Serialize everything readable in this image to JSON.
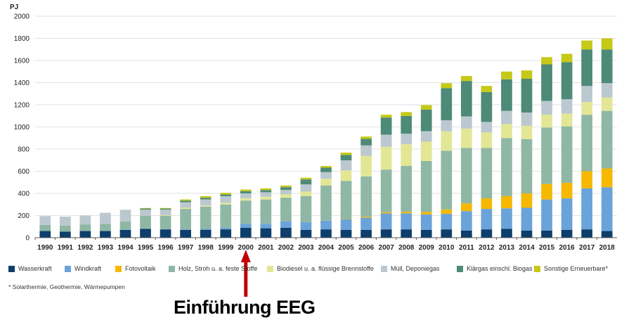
{
  "chart_data": {
    "type": "bar",
    "stacked": true,
    "ylabel": "PJ",
    "ylim": [
      0,
      2000
    ],
    "yticks": [
      0,
      200,
      400,
      600,
      800,
      1000,
      1200,
      1400,
      1600,
      1800,
      2000
    ],
    "grid": true,
    "legend_position": "bottom",
    "categories": [
      "1990",
      "1991",
      "1992",
      "1993",
      "1994",
      "1995",
      "1996",
      "1997",
      "1998",
      "1999",
      "2000",
      "2001",
      "2002",
      "2003",
      "2004",
      "2005",
      "2006",
      "2007",
      "2008",
      "2009",
      "2010",
      "2011",
      "2012",
      "2013",
      "2014",
      "2015",
      "2016",
      "2017",
      "2018"
    ],
    "series": [
      {
        "name": "Wasserkraft",
        "color": "#0e3e6b",
        "values": [
          60,
          55,
          60,
          60,
          70,
          80,
          75,
          70,
          70,
          75,
          90,
          85,
          90,
          70,
          75,
          70,
          70,
          75,
          75,
          70,
          75,
          65,
          75,
          80,
          65,
          65,
          70,
          75,
          60
        ]
      },
      {
        "name": "Windkraft",
        "color": "#6aa3d9",
        "values": [
          0,
          0,
          0,
          0,
          2,
          3,
          3,
          5,
          10,
          15,
          35,
          40,
          60,
          70,
          80,
          95,
          110,
          145,
          145,
          140,
          140,
          175,
          185,
          185,
          205,
          280,
          285,
          370,
          395
        ]
      },
      {
        "name": "Fotovoltaik",
        "color": "#f6b800",
        "values": [
          0,
          0,
          0,
          0,
          0,
          0,
          0,
          0,
          0,
          0,
          0,
          0,
          1,
          1,
          2,
          3,
          8,
          10,
          14,
          22,
          40,
          70,
          95,
          110,
          130,
          140,
          140,
          155,
          170
        ]
      },
      {
        "name": "Holz, Stroh u.a. feste Stoffe",
        "color": "#8fb7a5",
        "values": [
          55,
          55,
          60,
          65,
          75,
          115,
          120,
          185,
          200,
          210,
          210,
          220,
          210,
          235,
          315,
          345,
          365,
          385,
          415,
          460,
          530,
          500,
          455,
          525,
          490,
          510,
          510,
          510,
          520
        ]
      },
      {
        "name": "Biodiesel u.a. flüssige Brennstoffe",
        "color": "#e3e795",
        "values": [
          0,
          0,
          0,
          0,
          0,
          0,
          5,
          10,
          10,
          15,
          20,
          25,
          30,
          40,
          60,
          95,
          185,
          205,
          195,
          175,
          175,
          175,
          140,
          125,
          120,
          115,
          115,
          115,
          120
        ]
      },
      {
        "name": "Müll, Deponiegas",
        "color": "#bcc8cf",
        "values": [
          80,
          80,
          80,
          100,
          105,
          55,
          50,
          50,
          55,
          60,
          45,
          40,
          40,
          65,
          60,
          90,
          95,
          110,
          95,
          95,
          100,
          110,
          95,
          120,
          120,
          125,
          130,
          145,
          130
        ]
      },
      {
        "name": "Klärgas einschl. Biogas",
        "color": "#4d8a77",
        "values": [
          0,
          0,
          0,
          0,
          0,
          10,
          10,
          15,
          15,
          15,
          20,
          20,
          25,
          45,
          40,
          50,
          60,
          155,
          160,
          195,
          290,
          320,
          270,
          285,
          305,
          330,
          335,
          330,
          305
        ]
      },
      {
        "name": "Sonstige Erneuerbare*",
        "color": "#c6c916",
        "values": [
          0,
          0,
          0,
          0,
          0,
          5,
          5,
          10,
          15,
          15,
          15,
          15,
          15,
          15,
          15,
          20,
          20,
          25,
          35,
          40,
          45,
          45,
          55,
          70,
          75,
          65,
          75,
          80,
          100
        ]
      }
    ]
  },
  "legend": [
    {
      "label": "Wasserkraft",
      "color": "#0e3e6b"
    },
    {
      "label": "Windkraft",
      "color": "#6aa3d9"
    },
    {
      "label": "Fotovoltaik",
      "color": "#f6b800"
    },
    {
      "label": "Holz, Stroh u. a. feste Stoffe",
      "color": "#8fb7a5"
    },
    {
      "label": "Biodiesel u. a. flüssige Brennstoffe",
      "color": "#e3e795"
    },
    {
      "label": "Müll, Deponiegas",
      "color": "#bcc8cf"
    },
    {
      "label": "Klärgas einschl. Biogas",
      "color": "#4d8a77"
    },
    {
      "label": "Sonstige Erneuerbare*",
      "color": "#c6c916"
    }
  ],
  "footnote": "* Solarthermie, Geothermie, Wärmepumpen",
  "annotation": {
    "text": "Einführung EEG",
    "year": "2000",
    "arrow_color": "#c00000"
  }
}
